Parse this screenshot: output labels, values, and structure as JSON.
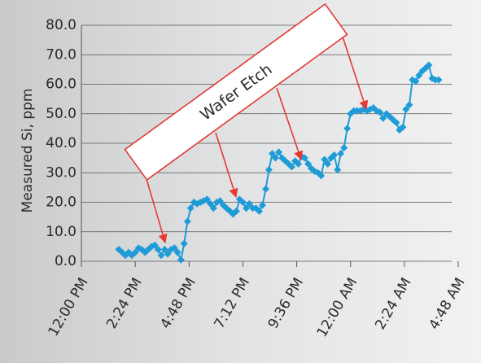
{
  "chart_data": {
    "type": "line",
    "y_label": "Measured Si, ppm",
    "annotation": "Wafer Etch",
    "color": "#1f9bd7",
    "grid": true,
    "x": [
      1.67,
      1.82,
      1.96,
      2.11,
      2.25,
      2.4,
      2.55,
      2.69,
      2.84,
      2.98,
      3.13,
      3.27,
      3.42,
      3.56,
      3.71,
      3.85,
      4.0,
      4.15,
      4.29,
      4.44,
      4.58,
      4.73,
      4.87,
      5.02,
      5.16,
      5.31,
      5.45,
      5.6,
      5.75,
      5.89,
      6.04,
      6.18,
      6.33,
      6.47,
      6.62,
      6.76,
      6.91,
      7.05,
      7.2,
      7.35,
      7.49,
      7.64,
      7.78,
      7.93,
      8.07,
      8.22,
      8.36,
      8.51,
      8.65,
      8.8,
      8.95,
      9.09,
      9.24,
      9.38,
      9.53,
      9.67,
      9.82,
      9.96,
      10.11,
      10.25,
      10.4,
      10.55,
      10.69,
      10.84,
      10.98,
      11.13,
      11.27,
      11.42,
      11.56,
      11.71,
      11.85,
      12.0,
      12.15,
      12.29,
      12.44,
      12.58,
      12.73,
      12.87,
      13.02,
      13.16,
      13.31,
      13.45,
      13.6,
      13.75,
      13.89,
      14.04,
      14.18,
      14.33,
      14.47,
      14.62,
      14.76,
      14.91,
      15.05,
      15.2,
      15.35,
      15.49,
      15.64,
      15.78,
      15.93
    ],
    "values": [
      4,
      3,
      2,
      3,
      2,
      3,
      4.5,
      4,
      3,
      4,
      5,
      5.5,
      4,
      2,
      4,
      2.5,
      4,
      4.5,
      3,
      0.5,
      6,
      13.5,
      18,
      20,
      19.5,
      20,
      20.5,
      21,
      19.5,
      18,
      20,
      20.5,
      19,
      18,
      17,
      16,
      17,
      21,
      20,
      18,
      19.5,
      18,
      18,
      17,
      19,
      24.5,
      31,
      36.5,
      35,
      37,
      35,
      34,
      33,
      32,
      34,
      33,
      35.5,
      35,
      33,
      31.5,
      30.5,
      30,
      29,
      34.5,
      33,
      35,
      36,
      31,
      36.5,
      38.5,
      45,
      50,
      51,
      51,
      51,
      51.5,
      51,
      51.5,
      52,
      51,
      50.5,
      48.5,
      50,
      49,
      48,
      47,
      44.5,
      45.5,
      51.5,
      53,
      61.5,
      61,
      63,
      64.5,
      65.5,
      66.5,
      62,
      61.5,
      61.5
    ],
    "xlim": [
      0,
      16.8
    ],
    "xticks": [
      {
        "value": 0,
        "label": "12:00 PM"
      },
      {
        "value": 2.4,
        "label": "2:24 PM"
      },
      {
        "value": 4.8,
        "label": "4:48 PM"
      },
      {
        "value": 7.2,
        "label": "7:12 PM"
      },
      {
        "value": 9.6,
        "label": "9:36 PM"
      },
      {
        "value": 12,
        "label": "12:00 AM"
      },
      {
        "value": 14.4,
        "label": "2:24 AM"
      },
      {
        "value": 16.8,
        "label": "4:48 AM"
      }
    ],
    "ylim": [
      0,
      80
    ],
    "yticks": [
      {
        "value": 0,
        "label": "0.0"
      },
      {
        "value": 10,
        "label": "10.0"
      },
      {
        "value": 20,
        "label": "20.0"
      },
      {
        "value": 30,
        "label": "30.0"
      },
      {
        "value": 40,
        "label": "40.0"
      },
      {
        "value": 50,
        "label": "50.0"
      },
      {
        "value": 60,
        "label": "60.0"
      },
      {
        "value": 70,
        "label": "70.0"
      },
      {
        "value": 80,
        "label": "80.0"
      }
    ]
  }
}
